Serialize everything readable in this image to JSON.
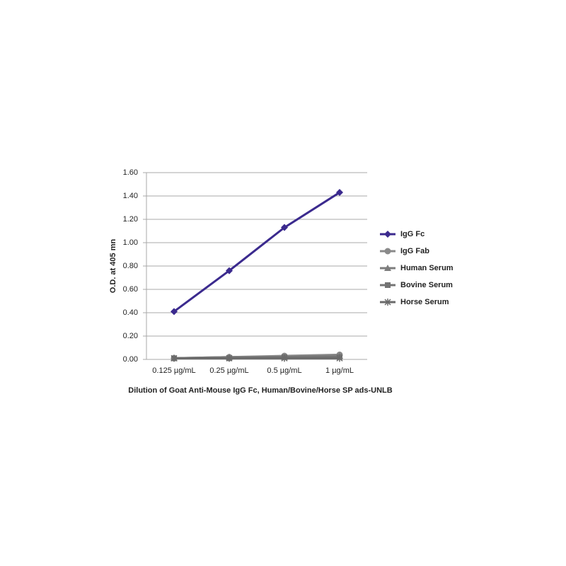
{
  "chart_data": {
    "type": "line",
    "xlabel": "Dilution of Goat Anti-Mouse IgG Fc, Human/Bovine/Horse SP ads-UNLB",
    "ylabel": "O.D. at 405 mn",
    "categories": [
      "0.125 µg/mL",
      "0.25 µg/mL",
      "0.5 µg/mL",
      "1 µg/mL"
    ],
    "series": [
      {
        "name": "IgG Fc",
        "color": "#3b2a8e",
        "marker": "diamond",
        "values": [
          0.41,
          0.76,
          1.13,
          1.43
        ]
      },
      {
        "name": "IgG Fab",
        "color": "#8a8a8a",
        "marker": "circle",
        "values": [
          0.01,
          0.02,
          0.03,
          0.04
        ]
      },
      {
        "name": "Human Serum",
        "color": "#7d7d7d",
        "marker": "triangle",
        "values": [
          0.01,
          0.02,
          0.02,
          0.03
        ]
      },
      {
        "name": "Bovine Serum",
        "color": "#737373",
        "marker": "square",
        "values": [
          0.01,
          0.01,
          0.02,
          0.02
        ]
      },
      {
        "name": "Horse Serum",
        "color": "#6a6a6a",
        "marker": "star",
        "values": [
          0.01,
          0.01,
          0.01,
          0.01
        ]
      }
    ],
    "ylim": [
      0,
      1.6
    ],
    "yticks": [
      {
        "value": 0,
        "label": "0.00"
      },
      {
        "value": 0.2,
        "label": "0.20"
      },
      {
        "value": 0.4,
        "label": "0.40"
      },
      {
        "value": 0.6,
        "label": "0.60"
      },
      {
        "value": 0.8,
        "label": "0.80"
      },
      {
        "value": 1,
        "label": "1.00"
      },
      {
        "value": 1.2,
        "label": "1.20"
      },
      {
        "value": 1.4,
        "label": "1.40"
      },
      {
        "value": 1.6,
        "label": "1.60"
      }
    ],
    "grid": true,
    "legend": "right"
  }
}
